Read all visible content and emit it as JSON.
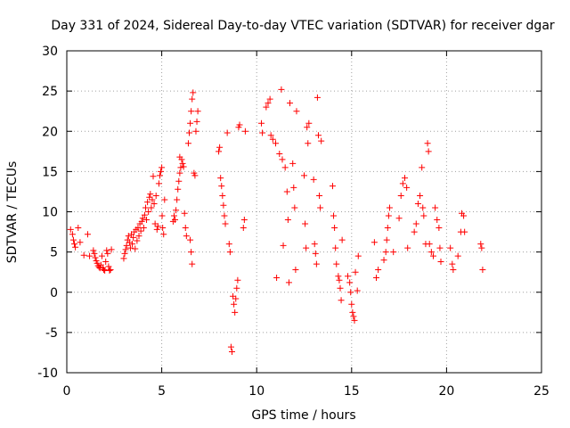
{
  "chart_data": {
    "type": "scatter",
    "title": "Day 331 of 2024, Sidereal Day-to-day VTEC variation (SDTVAR) for receiver dgar",
    "xlabel": "GPS time / hours",
    "ylabel": "SDTVAR / TECUs",
    "xlim": [
      0,
      25
    ],
    "ylim": [
      -10,
      30
    ],
    "xticks": [
      0,
      5,
      10,
      15,
      20,
      25
    ],
    "yticks": [
      -10,
      -5,
      0,
      5,
      10,
      15,
      20,
      25,
      30
    ],
    "grid": true,
    "marker": "+",
    "color": "#ff0000",
    "series": [
      {
        "name": "dgar",
        "points": [
          [
            0.2,
            7.8
          ],
          [
            0.3,
            7.2
          ],
          [
            0.35,
            6.5
          ],
          [
            0.4,
            6.0
          ],
          [
            0.45,
            5.6
          ],
          [
            0.6,
            8.0
          ],
          [
            0.7,
            6.2
          ],
          [
            0.9,
            4.6
          ],
          [
            1.1,
            7.2
          ],
          [
            1.2,
            4.5
          ],
          [
            1.4,
            5.2
          ],
          [
            1.45,
            4.8
          ],
          [
            1.5,
            4.3
          ],
          [
            1.55,
            3.9
          ],
          [
            1.6,
            3.6
          ],
          [
            1.65,
            3.3
          ],
          [
            1.7,
            3.1
          ],
          [
            1.75,
            3.0
          ],
          [
            1.8,
            3.4
          ],
          [
            1.85,
            4.5
          ],
          [
            1.9,
            3.0
          ],
          [
            1.95,
            2.8
          ],
          [
            2.0,
            2.7
          ],
          [
            2.05,
            3.8
          ],
          [
            2.1,
            5.2
          ],
          [
            2.15,
            4.8
          ],
          [
            2.2,
            3.2
          ],
          [
            2.25,
            2.7
          ],
          [
            2.3,
            2.8
          ],
          [
            2.35,
            5.3
          ],
          [
            3.0,
            4.2
          ],
          [
            3.05,
            4.8
          ],
          [
            3.1,
            5.3
          ],
          [
            3.15,
            5.8
          ],
          [
            3.2,
            6.5
          ],
          [
            3.25,
            7.0
          ],
          [
            3.3,
            6.2
          ],
          [
            3.35,
            5.5
          ],
          [
            3.4,
            7.2
          ],
          [
            3.45,
            6.0
          ],
          [
            3.5,
            6.8
          ],
          [
            3.55,
            7.5
          ],
          [
            3.6,
            5.4
          ],
          [
            3.65,
            7.8
          ],
          [
            3.7,
            6.4
          ],
          [
            3.75,
            8.0
          ],
          [
            3.8,
            7.0
          ],
          [
            3.85,
            8.5
          ],
          [
            3.9,
            7.6
          ],
          [
            3.95,
            8.8
          ],
          [
            4.0,
            9.2
          ],
          [
            4.05,
            8.0
          ],
          [
            4.1,
            9.6
          ],
          [
            4.15,
            10.5
          ],
          [
            4.2,
            9.0
          ],
          [
            4.25,
            11.2
          ],
          [
            4.3,
            10.0
          ],
          [
            4.35,
            11.8
          ],
          [
            4.4,
            12.2
          ],
          [
            4.45,
            10.5
          ],
          [
            4.5,
            11.5
          ],
          [
            4.55,
            14.4
          ],
          [
            4.6,
            11.0
          ],
          [
            4.65,
            8.5
          ],
          [
            4.7,
            12.0
          ],
          [
            4.75,
            7.8
          ],
          [
            4.8,
            8.2
          ],
          [
            4.85,
            13.5
          ],
          [
            4.9,
            14.5
          ],
          [
            4.95,
            15.0
          ],
          [
            5.0,
            15.5
          ],
          [
            5.02,
            9.5
          ],
          [
            5.05,
            8.0
          ],
          [
            5.1,
            7.2
          ],
          [
            5.15,
            11.5
          ],
          [
            5.6,
            8.8
          ],
          [
            5.65,
            9.5
          ],
          [
            5.7,
            9.0
          ],
          [
            5.75,
            10.2
          ],
          [
            5.8,
            11.5
          ],
          [
            5.85,
            12.8
          ],
          [
            5.9,
            13.8
          ],
          [
            5.95,
            14.8
          ],
          [
            6.0,
            15.5
          ],
          [
            5.95,
            16.8
          ],
          [
            6.05,
            16.5
          ],
          [
            6.1,
            16.0
          ],
          [
            6.15,
            15.6
          ],
          [
            6.2,
            9.8
          ],
          [
            6.25,
            8.0
          ],
          [
            6.3,
            7.0
          ],
          [
            6.4,
            18.5
          ],
          [
            6.45,
            19.8
          ],
          [
            6.5,
            21.0
          ],
          [
            6.55,
            22.5
          ],
          [
            6.6,
            24.0
          ],
          [
            6.65,
            24.8
          ],
          [
            6.5,
            6.5
          ],
          [
            6.55,
            5.0
          ],
          [
            6.6,
            3.5
          ],
          [
            6.7,
            14.8
          ],
          [
            6.75,
            14.5
          ],
          [
            6.8,
            20.0
          ],
          [
            6.85,
            21.2
          ],
          [
            6.9,
            22.5
          ],
          [
            8.0,
            17.5
          ],
          [
            8.05,
            18.0
          ],
          [
            8.1,
            14.2
          ],
          [
            8.15,
            13.2
          ],
          [
            8.2,
            12.0
          ],
          [
            8.25,
            10.8
          ],
          [
            8.3,
            9.5
          ],
          [
            8.35,
            8.5
          ],
          [
            8.45,
            19.8
          ],
          [
            8.55,
            6.0
          ],
          [
            8.6,
            5.0
          ],
          [
            8.65,
            -6.8
          ],
          [
            8.7,
            -7.4
          ],
          [
            8.75,
            -0.5
          ],
          [
            8.8,
            -1.5
          ],
          [
            8.85,
            -2.5
          ],
          [
            8.9,
            -0.8
          ],
          [
            8.95,
            0.5
          ],
          [
            9.0,
            1.5
          ],
          [
            9.05,
            20.5
          ],
          [
            9.1,
            20.8
          ],
          [
            9.3,
            8.0
          ],
          [
            9.35,
            9.0
          ],
          [
            9.4,
            20.0
          ],
          [
            10.25,
            21.0
          ],
          [
            10.3,
            19.8
          ],
          [
            10.5,
            23.0
          ],
          [
            10.6,
            23.5
          ],
          [
            10.7,
            24.0
          ],
          [
            10.75,
            19.5
          ],
          [
            10.85,
            19.0
          ],
          [
            11.0,
            18.5
          ],
          [
            11.05,
            1.8
          ],
          [
            11.2,
            17.2
          ],
          [
            11.3,
            25.2
          ],
          [
            11.35,
            16.5
          ],
          [
            11.4,
            5.8
          ],
          [
            11.5,
            15.5
          ],
          [
            11.6,
            12.5
          ],
          [
            11.65,
            9.0
          ],
          [
            11.7,
            1.2
          ],
          [
            11.75,
            23.5
          ],
          [
            11.9,
            16.0
          ],
          [
            11.95,
            13.0
          ],
          [
            12.0,
            10.5
          ],
          [
            12.05,
            2.8
          ],
          [
            12.1,
            22.5
          ],
          [
            12.5,
            14.5
          ],
          [
            12.55,
            8.5
          ],
          [
            12.6,
            5.5
          ],
          [
            12.65,
            20.5
          ],
          [
            12.7,
            18.5
          ],
          [
            12.75,
            21.0
          ],
          [
            13.0,
            14.0
          ],
          [
            13.05,
            6.0
          ],
          [
            13.1,
            4.8
          ],
          [
            13.15,
            3.5
          ],
          [
            13.2,
            24.2
          ],
          [
            13.25,
            19.5
          ],
          [
            13.3,
            12.0
          ],
          [
            13.35,
            10.5
          ],
          [
            13.4,
            18.8
          ],
          [
            14.0,
            13.2
          ],
          [
            14.05,
            9.5
          ],
          [
            14.1,
            8.0
          ],
          [
            14.15,
            5.5
          ],
          [
            14.2,
            3.5
          ],
          [
            14.3,
            2.0
          ],
          [
            14.35,
            1.5
          ],
          [
            14.4,
            0.5
          ],
          [
            14.45,
            -1.0
          ],
          [
            14.5,
            6.5
          ],
          [
            14.8,
            2.0
          ],
          [
            14.9,
            1.2
          ],
          [
            14.95,
            0.0
          ],
          [
            15.0,
            -1.5
          ],
          [
            15.05,
            -2.5
          ],
          [
            15.1,
            -3.0
          ],
          [
            15.15,
            -3.5
          ],
          [
            15.2,
            2.5
          ],
          [
            15.3,
            0.2
          ],
          [
            15.35,
            4.5
          ],
          [
            16.2,
            6.2
          ],
          [
            16.3,
            1.8
          ],
          [
            16.4,
            2.8
          ],
          [
            16.7,
            4.0
          ],
          [
            16.8,
            5.0
          ],
          [
            16.85,
            6.5
          ],
          [
            16.9,
            8.0
          ],
          [
            16.95,
            9.5
          ],
          [
            17.0,
            10.5
          ],
          [
            17.2,
            5.0
          ],
          [
            17.5,
            9.2
          ],
          [
            17.6,
            12.0
          ],
          [
            17.7,
            13.5
          ],
          [
            17.8,
            14.2
          ],
          [
            17.9,
            13.0
          ],
          [
            17.95,
            5.5
          ],
          [
            18.3,
            7.5
          ],
          [
            18.4,
            8.5
          ],
          [
            18.5,
            11.0
          ],
          [
            18.6,
            12.0
          ],
          [
            18.7,
            15.5
          ],
          [
            18.75,
            10.5
          ],
          [
            18.8,
            9.5
          ],
          [
            18.9,
            6.0
          ],
          [
            19.0,
            18.5
          ],
          [
            19.05,
            17.5
          ],
          [
            19.1,
            6.0
          ],
          [
            19.2,
            5.0
          ],
          [
            19.3,
            4.5
          ],
          [
            19.4,
            10.5
          ],
          [
            19.5,
            9.0
          ],
          [
            19.6,
            8.0
          ],
          [
            19.65,
            5.5
          ],
          [
            19.7,
            3.8
          ],
          [
            20.2,
            5.5
          ],
          [
            20.3,
            3.5
          ],
          [
            20.35,
            2.8
          ],
          [
            20.6,
            4.5
          ],
          [
            20.75,
            7.5
          ],
          [
            20.8,
            9.8
          ],
          [
            20.9,
            9.5
          ],
          [
            20.95,
            7.5
          ],
          [
            21.8,
            6.0
          ],
          [
            21.85,
            5.5
          ],
          [
            21.9,
            2.8
          ]
        ]
      }
    ]
  }
}
